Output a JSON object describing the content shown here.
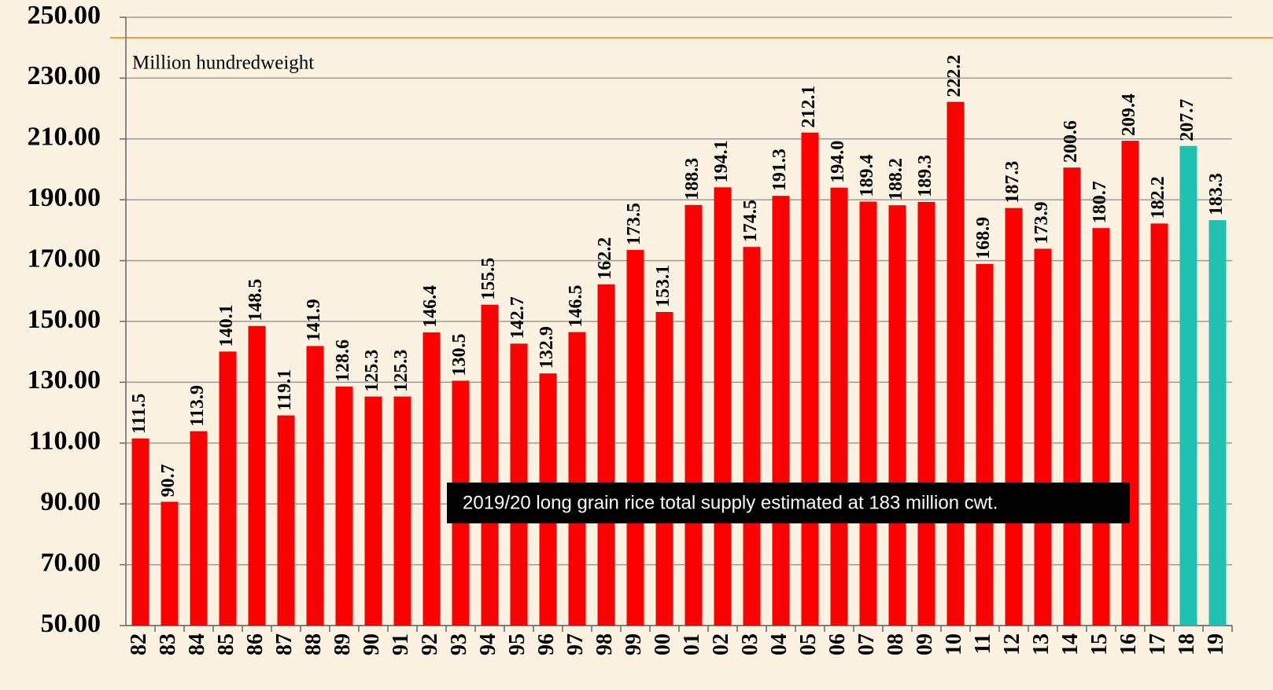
{
  "chart_data": {
    "type": "bar",
    "y_unit_label": "Million hundredweight",
    "annotation": "2019/20 long grain rice total supply estimated at 183 million cwt.",
    "categories": [
      "82",
      "83",
      "84",
      "85",
      "86",
      "87",
      "88",
      "89",
      "90",
      "91",
      "92",
      "93",
      "94",
      "95",
      "96",
      "97",
      "98",
      "99",
      "00",
      "01",
      "02",
      "03",
      "04",
      "05",
      "06",
      "07",
      "08",
      "09",
      "10",
      "11",
      "12",
      "13",
      "14",
      "15",
      "16",
      "17",
      "18",
      "19"
    ],
    "values": [
      111.5,
      90.7,
      113.9,
      140.1,
      148.5,
      119.1,
      141.9,
      128.6,
      125.3,
      125.3,
      146.4,
      130.5,
      155.5,
      142.7,
      132.9,
      146.5,
      162.2,
      173.5,
      153.1,
      188.3,
      194.1,
      174.5,
      191.3,
      212.1,
      194.0,
      189.4,
      188.2,
      189.3,
      222.2,
      168.9,
      187.3,
      173.9,
      200.6,
      180.7,
      209.4,
      182.2,
      207.7,
      183.3
    ],
    "value_labels": [
      "111.5",
      "90.7",
      "113.9",
      "140.1",
      "148.5",
      "119.1",
      "141.9",
      "128.6",
      "125.3",
      "125.3",
      "146.4",
      "130.5",
      "155.5",
      "142.7",
      "132.9",
      "146.5",
      "162.2",
      "173.5",
      "153.1",
      "188.3",
      "194.1",
      "174.5",
      "191.3",
      "212.1",
      "194.0",
      "189.4",
      "188.2",
      "189.3",
      "222.2",
      "168.9",
      "187.3",
      "173.9",
      "200.6",
      "180.7",
      "209.4",
      "182.2",
      "207.7",
      "183.3"
    ],
    "colors": [
      "#ff0000",
      "#ff0000",
      "#ff0000",
      "#ff0000",
      "#ff0000",
      "#ff0000",
      "#ff0000",
      "#ff0000",
      "#ff0000",
      "#ff0000",
      "#ff0000",
      "#ff0000",
      "#ff0000",
      "#ff0000",
      "#ff0000",
      "#ff0000",
      "#ff0000",
      "#ff0000",
      "#ff0000",
      "#ff0000",
      "#ff0000",
      "#ff0000",
      "#ff0000",
      "#ff0000",
      "#ff0000",
      "#ff0000",
      "#ff0000",
      "#ff0000",
      "#ff0000",
      "#ff0000",
      "#ff0000",
      "#ff0000",
      "#ff0000",
      "#ff0000",
      "#ff0000",
      "#ff0000",
      "#1fc1b0",
      "#1fc1b0"
    ],
    "ylim": [
      50,
      250
    ],
    "yticks": [
      {
        "value": 50,
        "label": "50.00"
      },
      {
        "value": 70,
        "label": "70.00"
      },
      {
        "value": 90,
        "label": "90.00"
      },
      {
        "value": 110,
        "label": "110.00"
      },
      {
        "value": 130,
        "label": "130.00"
      },
      {
        "value": 150,
        "label": "150.00"
      },
      {
        "value": 170,
        "label": "170.00"
      },
      {
        "value": 190,
        "label": "190.00"
      },
      {
        "value": 210,
        "label": "210.00"
      },
      {
        "value": 230,
        "label": "230.00"
      },
      {
        "value": 250,
        "label": "250.00"
      }
    ],
    "grid": true
  }
}
